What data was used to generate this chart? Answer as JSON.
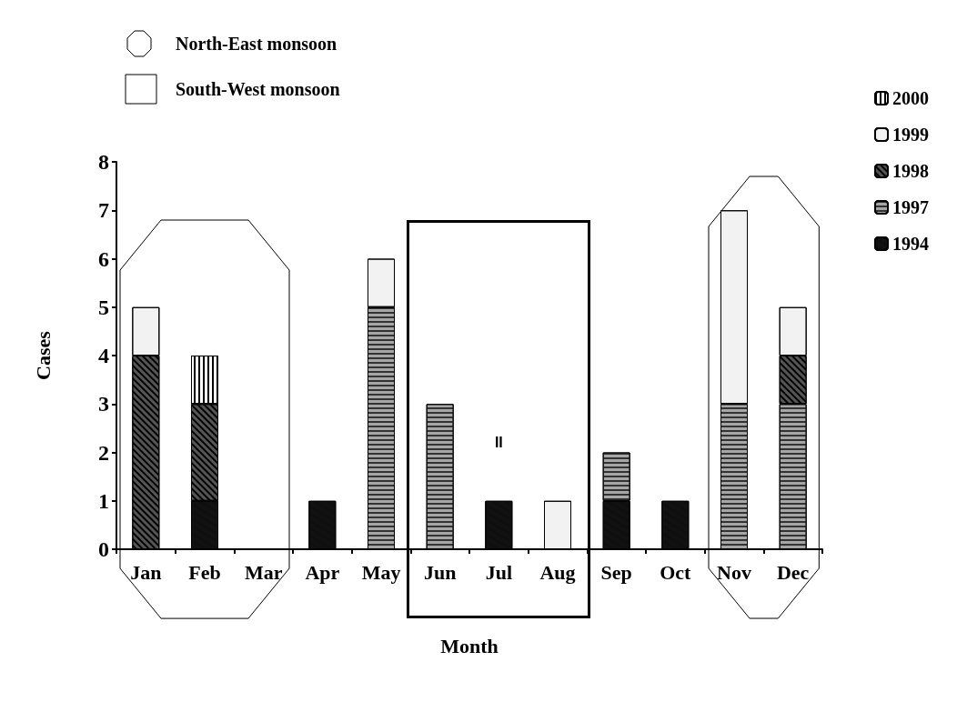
{
  "chart_data": {
    "type": "bar",
    "stacked": true,
    "xlabel": "Month",
    "ylabel": "Cases",
    "categories": [
      "Jan",
      "Feb",
      "Mar",
      "Apr",
      "May",
      "Jun",
      "Jul",
      "Aug",
      "Sep",
      "Oct",
      "Nov",
      "Dec"
    ],
    "series": [
      {
        "name": "1994",
        "color": "#111111",
        "values": [
          0,
          1,
          0,
          1,
          0,
          0,
          1,
          0,
          1,
          1,
          0,
          0
        ]
      },
      {
        "name": "1997",
        "color": "#a6a6a6",
        "values": [
          0,
          0,
          0,
          0,
          5,
          3,
          0,
          0,
          1,
          0,
          3,
          3
        ]
      },
      {
        "name": "1998",
        "color": "#555555",
        "values": [
          4,
          2,
          0,
          0,
          0,
          0,
          0,
          0,
          0,
          0,
          0,
          1
        ]
      },
      {
        "name": "1999",
        "color": "#f2f2f2",
        "values": [
          1,
          0,
          0,
          0,
          1,
          0,
          0,
          1,
          0,
          0,
          4,
          1
        ]
      },
      {
        "name": "2000",
        "color": "#ffffff",
        "values": [
          0,
          1,
          0,
          0,
          0,
          0,
          0,
          0,
          0,
          0,
          0,
          0
        ]
      }
    ],
    "ylim": [
      0,
      8
    ],
    "yticks": [
      0,
      1,
      2,
      3,
      4,
      5,
      6,
      7,
      8
    ],
    "grid": false,
    "legend": "top right",
    "annotations": [
      "North-East monsoon",
      "South-West monsoon",
      "II"
    ]
  }
}
